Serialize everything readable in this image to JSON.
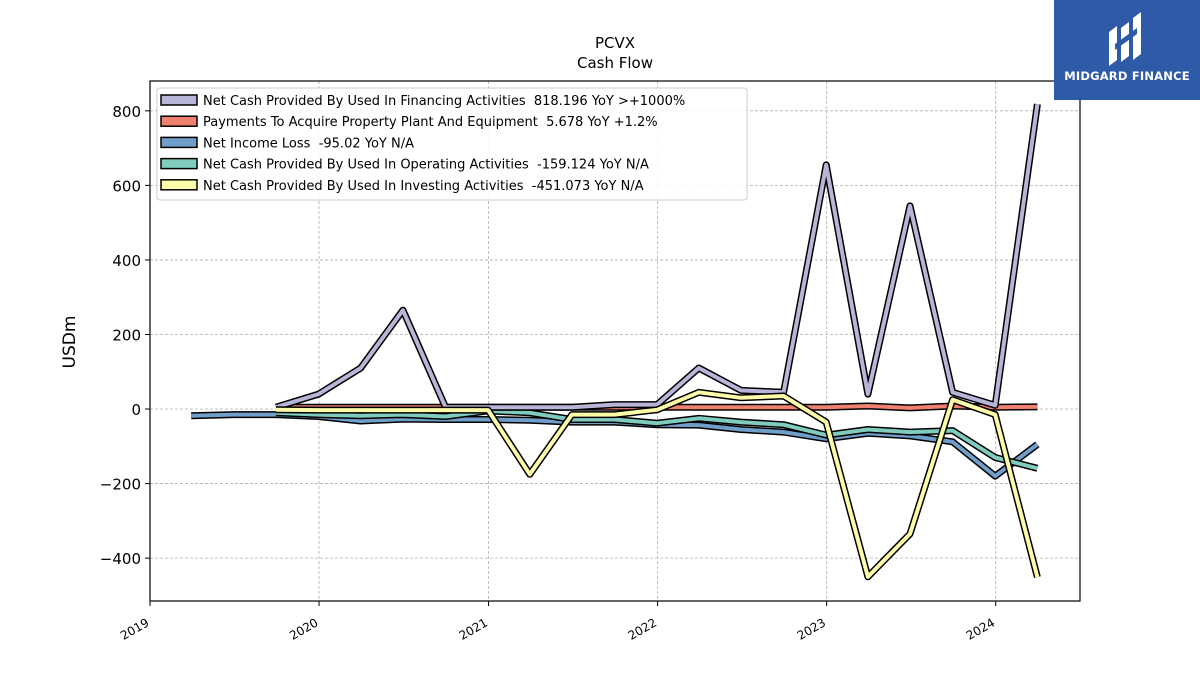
{
  "brand": {
    "name": "MIDGARD FINANCE"
  },
  "chart_data": {
    "type": "line",
    "title": "PCVX",
    "subtitle": "Cash Flow",
    "xlabel": "",
    "ylabel": "USDm",
    "ylim": [
      -515,
      880
    ],
    "xlim": [
      "2019-01-01",
      "2024-07-01"
    ],
    "x_ticks": [
      "2019",
      "2020",
      "2021",
      "2022",
      "2023",
      "2024"
    ],
    "y_ticks": [
      -400,
      -200,
      0,
      200,
      400,
      600,
      800
    ],
    "y_tick_labels": [
      "−400",
      "−200",
      "0",
      "200",
      "400",
      "600",
      "800"
    ],
    "grid": true,
    "legend_position": "top-left",
    "series": [
      {
        "name": "Net Income Loss",
        "legend": "Net Income Loss  -95.02 YoY N/A",
        "color": "#6f9fc8",
        "x": [
          "2019-03-31",
          "2019-06-30",
          "2019-09-30",
          "2019-12-31",
          "2020-03-31",
          "2020-06-30",
          "2020-09-30",
          "2020-12-31",
          "2021-03-31",
          "2021-06-30",
          "2021-09-30",
          "2021-12-31",
          "2022-03-31",
          "2022-06-30",
          "2022-09-30",
          "2022-12-31",
          "2023-03-31",
          "2023-06-30",
          "2023-09-30",
          "2023-12-31",
          "2024-03-31"
        ],
        "y": [
          -18,
          -15,
          -15,
          -20,
          -32,
          -27,
          -28,
          -28,
          -30,
          -35,
          -35,
          -42,
          -43,
          -55,
          -62,
          -80,
          -65,
          -72,
          -88,
          -180,
          -95
        ]
      },
      {
        "name": "Net Cash Provided By Used In Operating Activities",
        "legend": "Net Cash Provided By Used In Operating Activities  -159.124 YoY N/A",
        "color": "#7fcbbd",
        "x": [
          "2019-09-30",
          "2019-12-31",
          "2020-03-31",
          "2020-06-30",
          "2020-09-30",
          "2020-12-31",
          "2021-03-31",
          "2021-06-30",
          "2021-09-30",
          "2021-12-31",
          "2022-03-31",
          "2022-06-30",
          "2022-09-30",
          "2022-12-31",
          "2023-03-31",
          "2023-06-30",
          "2023-09-30",
          "2023-12-31",
          "2024-03-31"
        ],
        "y": [
          -10,
          -15,
          -18,
          -15,
          -20,
          -5,
          -10,
          -28,
          -28,
          -38,
          -25,
          -35,
          -42,
          -70,
          -55,
          -62,
          -58,
          -130,
          -159
        ]
      },
      {
        "name": "Payments To Acquire Property Plant And Equipment",
        "legend": "Payments To Acquire Property Plant And Equipment  5.678 YoY +1.2%",
        "color": "#f08070",
        "x": [
          "2019-09-30",
          "2019-12-31",
          "2020-03-31",
          "2020-06-30",
          "2020-09-30",
          "2020-12-31",
          "2021-03-31",
          "2021-06-30",
          "2021-09-30",
          "2021-12-31",
          "2022-03-31",
          "2022-06-30",
          "2022-09-30",
          "2022-12-31",
          "2023-03-31",
          "2023-06-30",
          "2023-09-30",
          "2023-12-31",
          "2024-03-31"
        ],
        "y": [
          5,
          5,
          5,
          5,
          5,
          5,
          5,
          5,
          5,
          5,
          5,
          5,
          5,
          5,
          8,
          3,
          8,
          5,
          5.7
        ]
      },
      {
        "name": "Net Cash Provided By Used In Financing Activities",
        "legend": "Net Cash Provided By Used In Financing Activities  818.196 YoY >+1000%",
        "color": "#b8b6d8",
        "x": [
          "2019-09-30",
          "2019-12-31",
          "2020-03-31",
          "2020-06-30",
          "2020-09-30",
          "2020-12-31",
          "2021-03-31",
          "2021-06-30",
          "2021-09-30",
          "2021-12-31",
          "2022-03-31",
          "2022-06-30",
          "2022-09-30",
          "2022-12-31",
          "2023-03-31",
          "2023-06-30",
          "2023-09-30",
          "2023-12-31",
          "2024-03-31"
        ],
        "y": [
          5,
          40,
          110,
          265,
          5,
          5,
          5,
          5,
          12,
          12,
          110,
          50,
          45,
          655,
          40,
          545,
          45,
          10,
          818
        ]
      },
      {
        "name": "Net Cash Provided By Used In Investing Activities",
        "legend": "Net Cash Provided By Used In Investing Activities  -451.073 YoY N/A",
        "color": "#fcfca8",
        "x": [
          "2019-09-30",
          "2019-12-31",
          "2020-03-31",
          "2020-06-30",
          "2020-09-30",
          "2020-12-31",
          "2021-03-31",
          "2021-06-30",
          "2021-09-30",
          "2021-12-31",
          "2022-03-31",
          "2022-06-30",
          "2022-09-30",
          "2022-12-31",
          "2023-03-31",
          "2023-06-30",
          "2023-09-30",
          "2023-12-31",
          "2024-03-31"
        ],
        "y": [
          -2,
          -3,
          -3,
          -3,
          -3,
          -3,
          -175,
          -15,
          -15,
          -2,
          45,
          30,
          35,
          -35,
          -450,
          -335,
          25,
          -15,
          -451
        ]
      }
    ],
    "legend_order": [
      3,
      2,
      0,
      1,
      4
    ]
  }
}
